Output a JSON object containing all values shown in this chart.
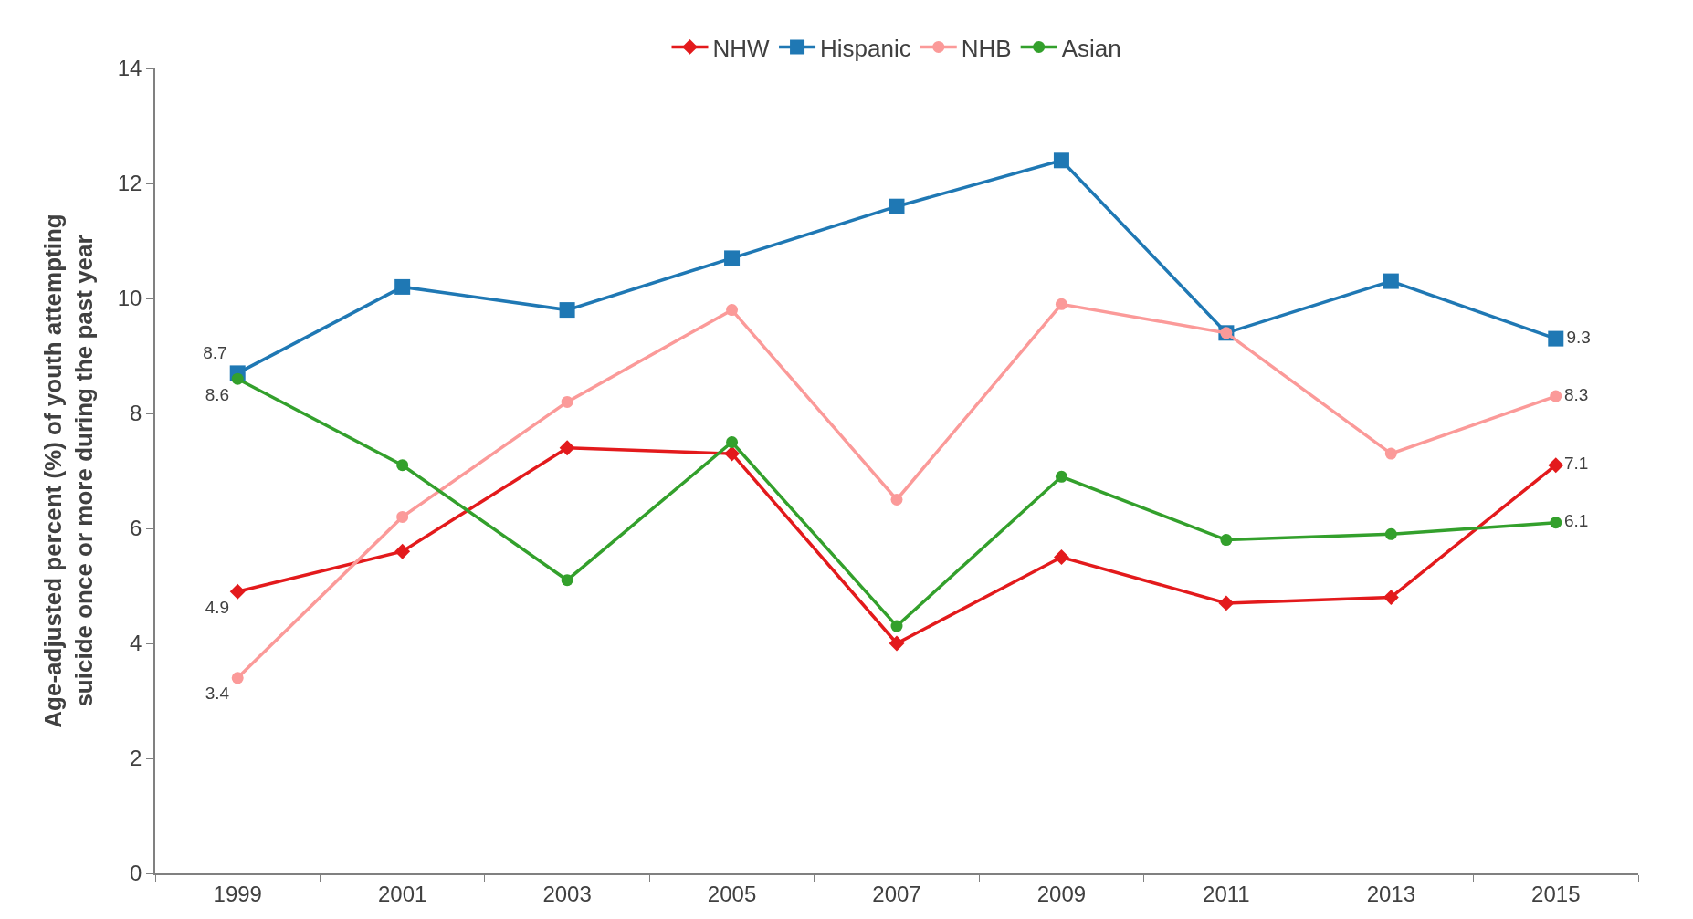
{
  "chart_data": {
    "type": "line",
    "ylabel": "Age-adjusted percent (%) of youth attempting suicide once or more during the past year",
    "categories": [
      "1999",
      "2001",
      "2003",
      "2005",
      "2007",
      "2009",
      "2011",
      "2013",
      "2015"
    ],
    "series": [
      {
        "name": "NHW",
        "color": "#e31a1c",
        "marker": "diamond",
        "values": [
          4.9,
          5.6,
          7.4,
          7.3,
          4.0,
          5.5,
          4.7,
          4.8,
          7.1
        ],
        "value_labels": [
          "4.9",
          null,
          null,
          null,
          null,
          null,
          null,
          null,
          "7.1"
        ]
      },
      {
        "name": "Hispanic",
        "color": "#1f78b4",
        "marker": "square",
        "values": [
          8.7,
          10.2,
          9.8,
          10.7,
          11.6,
          12.4,
          9.4,
          10.3,
          9.3
        ],
        "value_labels": [
          "8.7",
          null,
          null,
          null,
          null,
          null,
          null,
          null,
          "9.3"
        ]
      },
      {
        "name": "NHB",
        "color": "#fb9a99",
        "marker": "circle",
        "values": [
          3.4,
          6.2,
          8.2,
          9.8,
          6.5,
          9.9,
          9.4,
          7.3,
          8.3
        ],
        "value_labels": [
          "3.4",
          null,
          null,
          null,
          null,
          null,
          null,
          null,
          "8.3"
        ]
      },
      {
        "name": "Asian",
        "color": "#33a02c",
        "marker": "circle",
        "values": [
          8.6,
          7.1,
          5.1,
          7.5,
          4.3,
          6.9,
          5.8,
          5.9,
          6.1
        ],
        "value_labels": [
          "8.6",
          null,
          null,
          null,
          null,
          null,
          null,
          null,
          "6.1"
        ]
      }
    ],
    "ylim": [
      0,
      14
    ],
    "yticks": [
      0,
      2,
      4,
      6,
      8,
      10,
      12,
      14
    ],
    "grid": false,
    "legend": "top",
    "line_style": "solid"
  }
}
